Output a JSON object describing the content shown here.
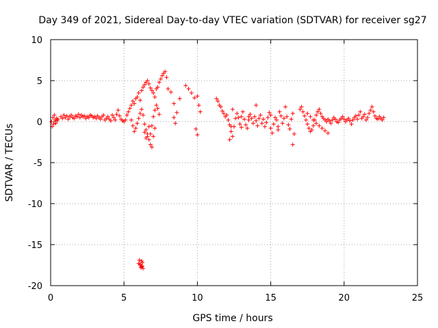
{
  "chart_data": {
    "type": "scatter",
    "title": "Day 349 of 2021, Sidereal Day-to-day VTEC variation (SDTVAR) for receiver sg27",
    "xlabel": "GPS time / hours",
    "ylabel": "SDTVAR / TECUs",
    "xlim": [
      0,
      25
    ],
    "ylim": [
      -20,
      10
    ],
    "xticks": [
      0,
      5,
      10,
      15,
      20,
      25
    ],
    "yticks": [
      -20,
      -15,
      -10,
      -5,
      0,
      5,
      10
    ],
    "xtick_labels": [
      "0",
      "5",
      "10",
      "15",
      "20",
      "25"
    ],
    "ytick_labels": [
      "-20",
      "-15",
      "-10",
      "-5",
      "0",
      "5",
      "10"
    ],
    "grid": true,
    "marker": "plus",
    "series": [
      {
        "name": "sg27",
        "color": "#ff0000",
        "x": [
          0.05,
          0.1,
          0.15,
          0.2,
          0.25,
          0.3,
          0.35,
          0.4,
          0.45,
          0.5,
          0.7,
          0.8,
          0.9,
          1.0,
          1.1,
          1.2,
          1.3,
          1.4,
          1.5,
          1.6,
          1.7,
          1.8,
          1.9,
          2.0,
          2.1,
          2.2,
          2.3,
          2.4,
          2.5,
          2.6,
          2.7,
          2.8,
          2.9,
          3.0,
          3.1,
          3.2,
          3.3,
          3.4,
          3.5,
          3.6,
          3.7,
          3.8,
          3.9,
          4.0,
          4.1,
          4.2,
          4.3,
          4.4,
          4.5,
          4.6,
          4.7,
          4.8,
          4.9,
          5.0,
          5.1,
          5.2,
          5.3,
          5.4,
          5.5,
          5.6,
          5.7,
          5.8,
          5.9,
          6.0,
          6.1,
          6.2,
          6.3,
          6.4,
          6.5,
          6.6,
          6.7,
          6.8,
          6.9,
          7.0,
          7.1,
          7.2,
          7.3,
          7.4,
          7.5,
          7.6,
          7.7,
          7.8,
          7.9,
          5.5,
          5.6,
          5.7,
          5.8,
          5.9,
          6.0,
          6.1,
          6.2,
          6.3,
          6.4,
          6.5,
          6.6,
          6.7,
          6.8,
          6.9,
          7.0,
          7.1,
          7.2,
          7.3,
          7.4,
          6.4,
          6.5,
          6.6,
          6.7,
          6.8,
          6.9,
          7.0,
          7.1,
          6.2,
          6.25,
          6.3,
          6.0,
          6.1,
          8.0,
          8.2,
          8.4,
          8.6,
          8.8,
          9.2,
          9.4,
          9.6,
          9.8,
          10.0,
          10.1,
          10.2,
          8.4,
          8.5,
          9.9,
          10.0,
          11.3,
          11.4,
          11.5,
          11.6,
          11.7,
          11.8,
          11.9,
          12.0,
          12.1,
          12.2,
          12.3,
          12.4,
          12.5,
          12.6,
          12.7,
          12.8,
          12.9,
          13.0,
          13.1,
          13.2,
          13.3,
          13.4,
          13.5,
          13.6,
          13.7,
          13.8,
          13.9,
          14.0,
          14.1,
          14.2,
          14.3,
          14.4,
          14.5,
          14.6,
          14.7,
          14.8,
          14.9,
          15.0,
          15.1,
          15.2,
          15.3,
          15.4,
          15.5,
          15.6,
          15.7,
          15.8,
          15.9,
          16.0,
          16.1,
          16.2,
          16.3,
          16.4,
          16.5,
          16.6,
          12.2,
          12.3,
          12.4,
          13.0,
          13.5,
          14.0,
          15.0,
          15.5,
          16.5,
          17.0,
          17.1,
          17.2,
          17.3,
          17.4,
          17.5,
          17.6,
          17.7,
          17.8,
          17.9,
          18.0,
          18.1,
          18.2,
          18.3,
          18.4,
          18.5,
          18.6,
          18.7,
          18.8,
          18.9,
          19.0,
          19.1,
          19.2,
          19.3,
          19.4,
          19.5,
          19.6,
          19.7,
          19.8,
          19.9,
          20.0,
          20.1,
          20.2,
          20.3,
          20.4,
          20.5,
          20.6,
          20.7,
          20.8,
          20.9,
          21.0,
          21.1,
          21.2,
          21.3,
          21.4,
          21.5,
          21.6,
          21.7,
          21.8,
          21.9,
          22.0,
          22.1,
          22.2,
          22.3,
          22.4,
          22.5,
          22.6,
          22.7,
          17.5,
          17.7,
          17.9,
          18.1,
          18.3,
          18.5,
          18.7,
          18.9,
          6.05,
          6.1,
          6.15,
          6.2,
          6.25
        ],
        "y": [
          0.0,
          -0.6,
          0.5,
          -0.3,
          0.8,
          0.2,
          -0.2,
          0.4,
          0.1,
          0.3,
          0.6,
          0.4,
          0.8,
          0.5,
          0.7,
          0.3,
          0.6,
          0.8,
          0.5,
          0.4,
          0.7,
          0.6,
          0.9,
          0.5,
          0.8,
          0.6,
          0.7,
          0.4,
          0.6,
          0.5,
          0.8,
          0.7,
          0.5,
          0.6,
          0.4,
          0.7,
          0.5,
          0.3,
          0.6,
          0.8,
          0.2,
          0.4,
          0.6,
          0.3,
          0.1,
          0.8,
          0.5,
          0.2,
          0.9,
          1.4,
          0.7,
          0.3,
          0.1,
          0.0,
          0.2,
          0.8,
          1.2,
          1.6,
          2.0,
          2.5,
          2.2,
          2.8,
          3.0,
          3.5,
          2.6,
          3.8,
          4.2,
          4.5,
          4.8,
          5.0,
          4.6,
          4.1,
          3.8,
          3.5,
          3.0,
          4.0,
          4.2,
          4.8,
          5.2,
          5.6,
          5.9,
          6.1,
          5.4,
          0.2,
          -0.5,
          -1.2,
          -0.8,
          -0.2,
          0.4,
          1.0,
          1.5,
          0.8,
          -0.3,
          -1.0,
          -1.8,
          -2.2,
          -1.5,
          -0.5,
          0.6,
          1.4,
          2.0,
          1.6,
          0.9,
          -1.3,
          -2.0,
          -1.5,
          -0.6,
          -2.8,
          -3.1,
          -1.8,
          -0.8,
          -17.0,
          -17.6,
          -17.9,
          -17.3,
          -17.5,
          4.0,
          3.6,
          2.2,
          1.1,
          2.8,
          4.4,
          4.0,
          3.5,
          2.9,
          3.1,
          2.0,
          1.2,
          0.5,
          -0.2,
          -0.9,
          -1.6,
          2.8,
          2.5,
          2.0,
          1.8,
          1.3,
          1.0,
          0.6,
          0.8,
          0.2,
          -0.4,
          -1.2,
          -1.8,
          -0.6,
          0.4,
          1.0,
          0.5,
          -0.3,
          0.6,
          1.2,
          0.3,
          -0.4,
          -0.8,
          0.2,
          0.9,
          0.4,
          -0.2,
          0.6,
          0.1,
          -0.5,
          0.4,
          0.8,
          -0.2,
          0.3,
          -0.6,
          -0.1,
          0.5,
          1.1,
          -0.8,
          -1.4,
          -0.3,
          0.5,
          0.2,
          -0.6,
          1.2,
          0.7,
          -0.2,
          0.4,
          1.8,
          0.6,
          -0.4,
          -0.9,
          0.3,
          1.0,
          -1.5,
          -2.2,
          -0.6,
          1.5,
          -0.7,
          0.6,
          2.0,
          0.8,
          -1.0,
          -2.8,
          1.5,
          1.8,
          1.2,
          0.7,
          0.2,
          -0.3,
          -0.8,
          -1.2,
          -1.0,
          -0.5,
          0.2,
          0.8,
          1.2,
          1.5,
          1.0,
          0.6,
          0.4,
          0.2,
          0.0,
          0.3,
          0.1,
          -0.2,
          0.2,
          0.5,
          0.3,
          0.0,
          -0.1,
          0.2,
          0.4,
          0.6,
          0.3,
          0.0,
          0.2,
          0.4,
          0.1,
          -0.3,
          0.2,
          0.5,
          0.7,
          0.3,
          0.8,
          1.2,
          0.4,
          0.6,
          0.9,
          0.2,
          0.5,
          1.0,
          1.4,
          1.8,
          1.2,
          0.7,
          0.4,
          0.3,
          0.6,
          0.4,
          0.2,
          0.5,
          1.0,
          0.6,
          0.2,
          -0.2,
          -0.5,
          -0.8,
          -1.1,
          -1.4,
          -16.9,
          -17.4,
          -17.8,
          -17.7,
          -17.2
        ]
      }
    ]
  }
}
